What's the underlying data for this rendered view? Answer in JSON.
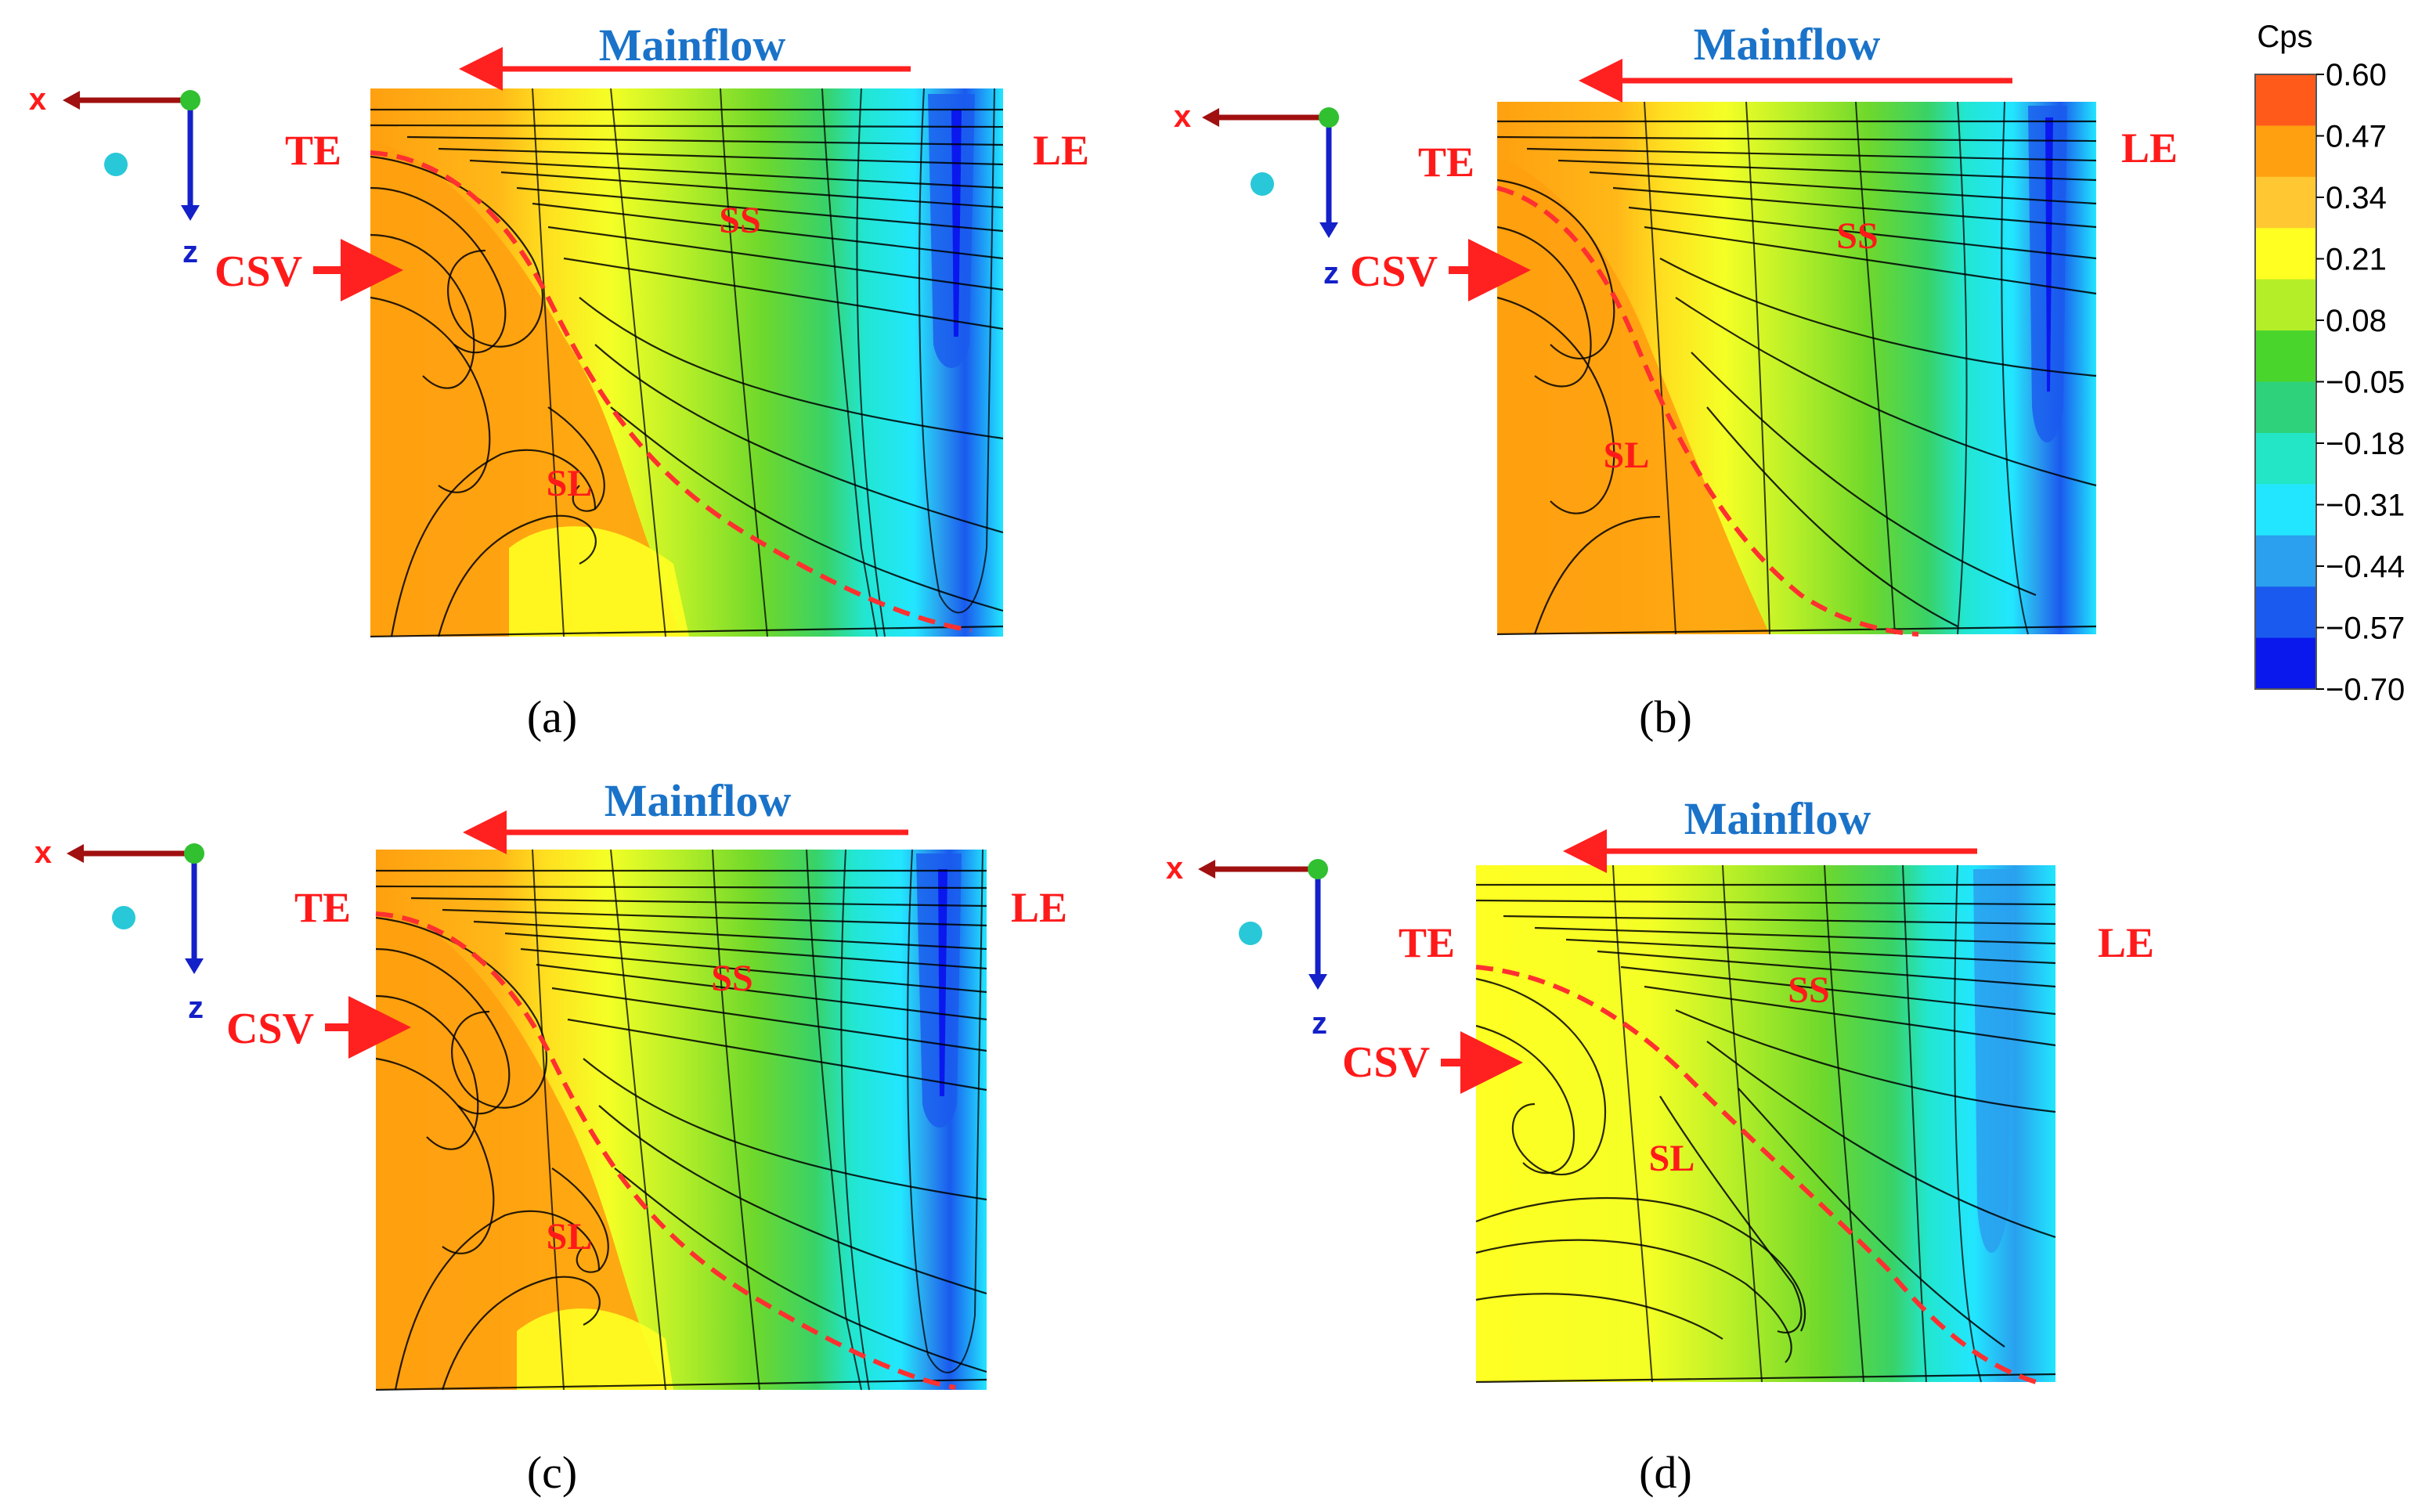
{
  "colorbar": {
    "title": "Cps",
    "ticks": [
      "0.60",
      "0.47",
      "0.34",
      "0.21",
      "0.08",
      "−0.05",
      "−0.18",
      "−0.31",
      "−0.44",
      "−0.57",
      "−0.70"
    ],
    "colors": [
      "#ff5a1a",
      "#ffa010",
      "#ffc832",
      "#ffff22",
      "#b4ee28",
      "#4ad52c",
      "#2ed27a",
      "#22e6c6",
      "#22e6ff",
      "#2aa0ee",
      "#1a5aee",
      "#0a18ee"
    ]
  },
  "panels": [
    {
      "caption": "(a)",
      "mainflow": "Mainflow",
      "te": "TE",
      "le": "LE",
      "ss": "SS",
      "sl": "SL",
      "csv": "CSV",
      "axis_x": "x",
      "axis_z": "z"
    },
    {
      "caption": "(b)",
      "mainflow": "Mainflow",
      "te": "TE",
      "le": "LE",
      "ss": "SS",
      "sl": "SL",
      "csv": "CSV",
      "axis_x": "x",
      "axis_z": "z"
    },
    {
      "caption": "(c)",
      "mainflow": "Mainflow",
      "te": "TE",
      "le": "LE",
      "ss": "SS",
      "sl": "SL",
      "csv": "CSV",
      "axis_x": "x",
      "axis_z": "z"
    },
    {
      "caption": "(d)",
      "mainflow": "Mainflow",
      "te": "TE",
      "le": "LE",
      "ss": "SS",
      "sl": "SL",
      "csv": "CSV",
      "axis_x": "x",
      "axis_z": "z"
    }
  ],
  "colors": {
    "label_red": "#ff1a1a",
    "label_blue": "#1a73c9",
    "arrow_red": "#ff2020",
    "x_axis": "#a01010",
    "z_axis": "#1420c8",
    "origin": "#30c030",
    "marker": "#28c8d8"
  }
}
